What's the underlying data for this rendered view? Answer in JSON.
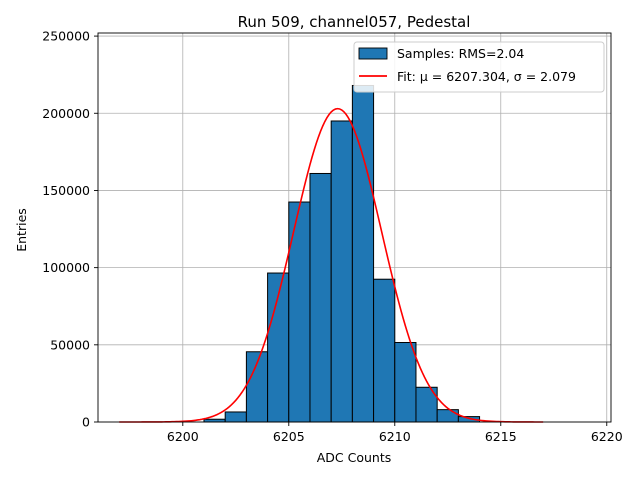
{
  "chart_data": {
    "type": "bar",
    "title": "Run 509, channel057, Pedestal",
    "xlabel": "ADC Counts",
    "ylabel": "Entries",
    "xlim": [
      6196,
      6220.2
    ],
    "ylim": [
      0,
      252000
    ],
    "xticks": [
      6200,
      6205,
      6210,
      6215,
      6220
    ],
    "yticks": [
      0,
      50000,
      100000,
      150000,
      200000,
      250000
    ],
    "grid": true,
    "legend_position": "top-right",
    "bins": {
      "edges": [
        6201,
        6202,
        6203,
        6204,
        6205,
        6206,
        6207,
        6208,
        6209,
        6210,
        6211,
        6212,
        6213,
        6214
      ],
      "values": [
        1800,
        6500,
        45500,
        96500,
        142500,
        161000,
        195000,
        218000,
        92500,
        51500,
        22500,
        8000,
        3500
      ],
      "color": "#1f77b4",
      "edge_color": "#000000"
    },
    "fit": {
      "mu": 6207.304,
      "sigma": 2.079,
      "amplitude": 203000,
      "x_range": [
        6197,
        6217
      ],
      "color": "#ff0000"
    },
    "legend": [
      {
        "label": "Samples: RMS=2.04",
        "kind": "patch"
      },
      {
        "label": "Fit: μ = 6207.304, σ = 2.079",
        "kind": "line"
      }
    ]
  }
}
